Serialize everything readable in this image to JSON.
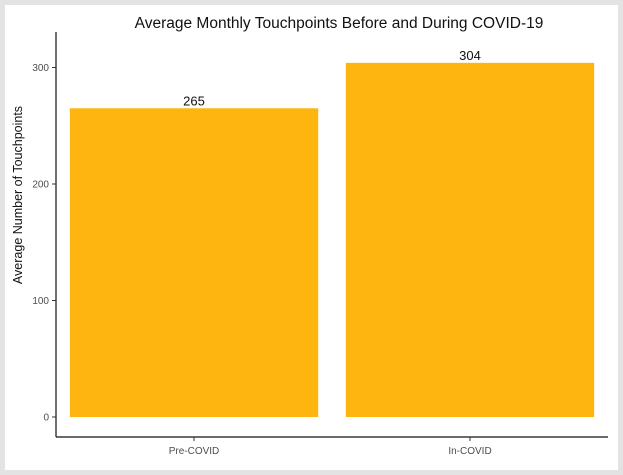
{
  "chart_data": {
    "type": "bar",
    "title": "Average Monthly Touchpoints Before and During COVID-19",
    "xlabel": "",
    "ylabel": "Average Number of Touchpoints",
    "categories": [
      "Pre-COVID",
      "In-COVID"
    ],
    "values": [
      265,
      304
    ],
    "data_labels": [
      "265",
      "304"
    ],
    "ylim": [
      0,
      320
    ],
    "yticks": [
      0,
      100,
      200,
      300
    ],
    "ytick_labels": [
      "0",
      "100",
      "200",
      "300"
    ],
    "grid": false,
    "legend": "none",
    "bar_color": "#FFB510"
  }
}
